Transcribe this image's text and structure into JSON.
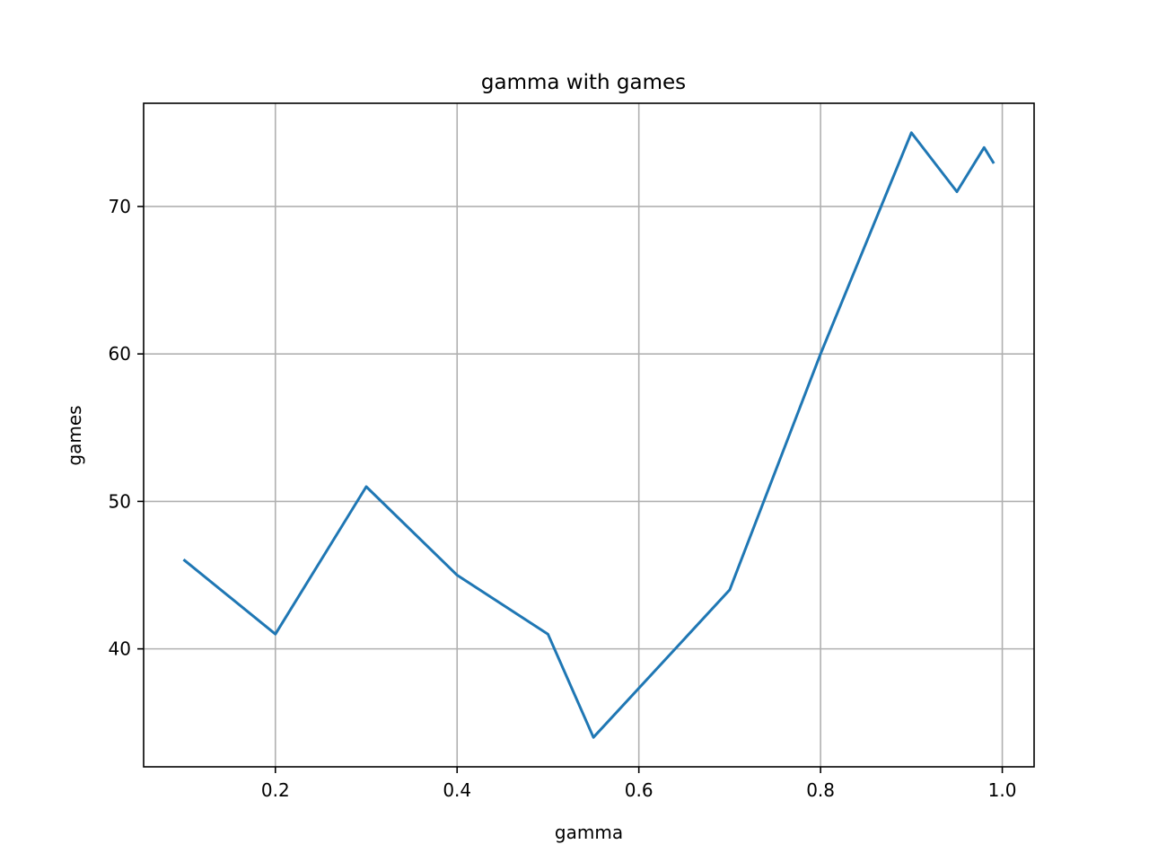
{
  "chart_data": {
    "type": "line",
    "title": "gamma with games",
    "xlabel": "gamma",
    "ylabel": "games",
    "xlim": [
      0.055,
      1.035
    ],
    "ylim": [
      32,
      77
    ],
    "xticks": [
      0.2,
      0.4,
      0.6,
      0.8,
      1.0
    ],
    "xtick_labels": [
      "0.2",
      "0.4",
      "0.6",
      "0.8",
      "1.0"
    ],
    "yticks": [
      40,
      50,
      60,
      70
    ],
    "ytick_labels": [
      "40",
      "50",
      "60",
      "70"
    ],
    "grid": true,
    "series": [
      {
        "name": "games",
        "color": "#1f77b4",
        "x": [
          0.1,
          0.2,
          0.3,
          0.4,
          0.5,
          0.55,
          0.7,
          0.8,
          0.9,
          0.95,
          0.98,
          0.99
        ],
        "values": [
          46,
          41,
          51,
          45,
          41,
          34,
          44,
          60,
          75,
          71,
          74,
          73
        ]
      }
    ]
  }
}
